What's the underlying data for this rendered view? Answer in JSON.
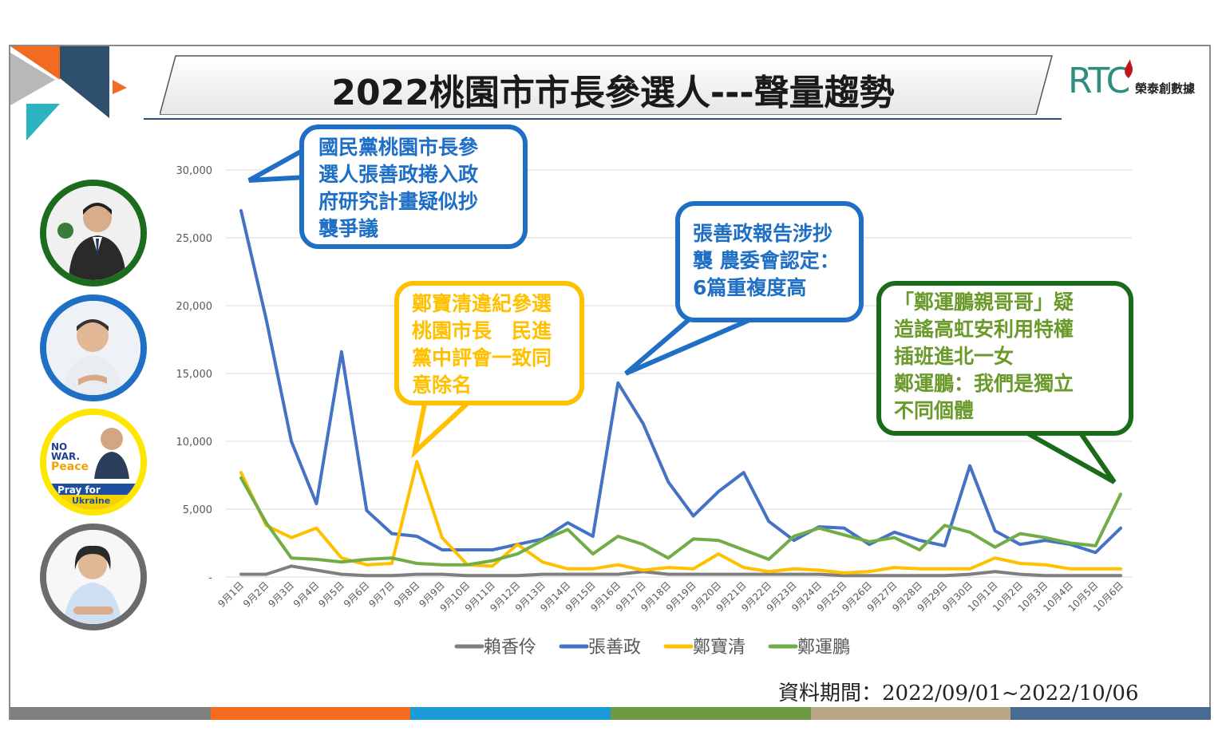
{
  "title": "2022桃園市市長參選人---聲量趨勢",
  "logo": {
    "mark": "RTC",
    "name": "榮泰創數據"
  },
  "source_note": "資料期間：2022/09/01~2022/10/06",
  "colors": {
    "lai": "#7f7f7f",
    "chang": "#4472c4",
    "cheng_bao": "#ffc000",
    "cheng_yun": "#70ad47",
    "bubble_blue": "#1f6fc5",
    "bubble_yellow": "#ffc000",
    "bubble_green": "#1a6b1a"
  },
  "avatars": [
    {
      "name": "avatar-kmt",
      "ring": "#1d6b1d"
    },
    {
      "name": "avatar-dpp",
      "ring": "#1f6fc5"
    },
    {
      "name": "avatar-yellow",
      "ring": "#ffe600",
      "text1": "NO",
      "text2": "WAR.",
      "text3": "Peace",
      "text4": "Pray for",
      "text5": "Ukraine"
    },
    {
      "name": "avatar-tpp",
      "ring": "#6b6b6b"
    }
  ],
  "callouts": [
    {
      "text": "國民黨桃園市長參\n選人張善政捲入政\n府研究計畫疑似抄\n襲爭議"
    },
    {
      "text": "鄭寶清違紀參選\n桃園市長　民進\n黨中評會一致同\n意除名"
    },
    {
      "text": "張善政報告涉抄\n襲 農委會認定：\n6篇重複度高"
    },
    {
      "text": "「鄭運鵬親哥哥」疑\n造謠高虹安利用特權\n插班進北一女\n鄭運鵬：我們是獨立\n不同個體"
    }
  ],
  "chart_data": {
    "type": "line",
    "title": "",
    "xlabel": "",
    "ylabel": "",
    "ylim": [
      0,
      30000
    ],
    "yticks": [
      "-",
      "5,000",
      "10,000",
      "15,000",
      "20,000",
      "25,000",
      "30,000"
    ],
    "grid": true,
    "legend": "bottom",
    "x": [
      "9月1日",
      "9月2日",
      "9月3日",
      "9月4日",
      "9月5日",
      "9月6日",
      "9月7日",
      "9月8日",
      "9月9日",
      "9月10日",
      "9月11日",
      "9月12日",
      "9月13日",
      "9月14日",
      "9月15日",
      "9月16日",
      "9月17日",
      "9月18日",
      "9月19日",
      "9月20日",
      "9月21日",
      "9月22日",
      "9月23日",
      "9月24日",
      "9月25日",
      "9月26日",
      "9月27日",
      "9月28日",
      "9月29日",
      "9月30日",
      "10月1日",
      "10月2日",
      "10月3日",
      "10月4日",
      "10月5日",
      "10月6日"
    ],
    "series": [
      {
        "name": "賴香伶",
        "color": "#7f7f7f",
        "values": [
          200,
          200,
          800,
          500,
          200,
          100,
          100,
          200,
          200,
          100,
          100,
          100,
          200,
          200,
          200,
          200,
          400,
          200,
          200,
          200,
          200,
          200,
          200,
          200,
          100,
          100,
          100,
          100,
          100,
          200,
          400,
          200,
          100,
          100,
          100,
          100
        ]
      },
      {
        "name": "張善政",
        "color": "#4472c4",
        "values": [
          27000,
          19000,
          10000,
          5400,
          16600,
          4900,
          3200,
          3000,
          2000,
          2000,
          2000,
          2400,
          2800,
          4000,
          3000,
          14300,
          11300,
          7000,
          4500,
          6300,
          7700,
          4100,
          2700,
          3700,
          3600,
          2400,
          3300,
          2700,
          2300,
          8200,
          3400,
          2400,
          2700,
          2400,
          1800,
          3600
        ]
      },
      {
        "name": "鄭寶清",
        "color": "#ffc000",
        "values": [
          7700,
          3800,
          2900,
          3600,
          1400,
          900,
          1000,
          8500,
          2900,
          900,
          800,
          2400,
          1100,
          600,
          600,
          900,
          500,
          700,
          600,
          1700,
          700,
          400,
          600,
          500,
          300,
          400,
          700,
          600,
          600,
          600,
          1400,
          1000,
          900,
          600,
          600,
          600
        ]
      },
      {
        "name": "鄭運鵬",
        "color": "#70ad47",
        "values": [
          7300,
          4000,
          1400,
          1300,
          1100,
          1300,
          1400,
          1000,
          900,
          900,
          1200,
          1700,
          2700,
          3500,
          1700,
          3000,
          2400,
          1400,
          2800,
          2700,
          2000,
          1300,
          3000,
          3600,
          3100,
          2600,
          2900,
          2000,
          3800,
          3300,
          2200,
          3200,
          2900,
          2500,
          2300,
          6100
        ]
      }
    ]
  }
}
